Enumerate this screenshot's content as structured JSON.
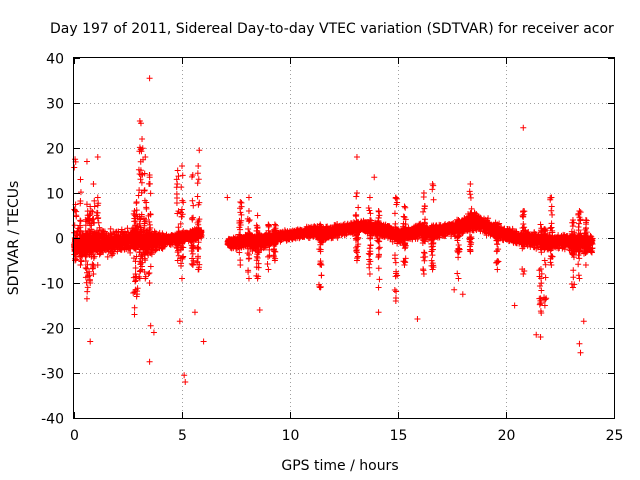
{
  "chart_data": {
    "type": "scatter",
    "title": "Day 197 of 2011, Sidereal Day-to-day VTEC variation (SDTVAR) for receiver acor",
    "xlabel": "GPS time / hours",
    "ylabel": "SDTVAR / TECUs",
    "xlim": [
      0,
      25
    ],
    "ylim": [
      -40,
      40
    ],
    "xticks": [
      0,
      5,
      10,
      15,
      20,
      25
    ],
    "yticks": [
      -40,
      -30,
      -20,
      -10,
      0,
      10,
      20,
      30,
      40
    ],
    "xtick_labels": [
      "0",
      "5",
      "10",
      "15",
      "20",
      "25"
    ],
    "ytick_labels": [
      "-40",
      "-30",
      "-20",
      "-10",
      "0",
      "10",
      "20",
      "30",
      "40"
    ],
    "grid": true,
    "marker": "+",
    "series_color": "#ff0000",
    "series": [
      {
        "name": "SDTVAR",
        "band": [
          {
            "x": 0.0,
            "mid": -1.5,
            "lo": -5.0,
            "hi": 4.0
          },
          {
            "x": 0.5,
            "mid": -1.5,
            "lo": -5.0,
            "hi": 3.0
          },
          {
            "x": 1.0,
            "mid": -1.0,
            "lo": -4.5,
            "hi": 3.0
          },
          {
            "x": 1.5,
            "mid": -1.0,
            "lo": -4.5,
            "hi": 2.5
          },
          {
            "x": 2.0,
            "mid": -1.0,
            "lo": -4.0,
            "hi": 2.5
          },
          {
            "x": 2.5,
            "mid": -0.5,
            "lo": -4.0,
            "hi": 2.5
          },
          {
            "x": 3.0,
            "mid": -0.5,
            "lo": -4.0,
            "hi": 3.0
          },
          {
            "x": 3.5,
            "mid": -1.0,
            "lo": -5.0,
            "hi": 2.5
          },
          {
            "x": 4.0,
            "mid": -0.5,
            "lo": -3.0,
            "hi": 1.5
          },
          {
            "x": 4.5,
            "mid": -0.2,
            "lo": -2.5,
            "hi": 1.0
          },
          {
            "x": 5.0,
            "mid": 0.2,
            "lo": -2.0,
            "hi": 1.5
          },
          {
            "x": 5.5,
            "mid": 0.8,
            "lo": -1.0,
            "hi": 2.5
          },
          {
            "x": 5.9,
            "mid": 1.0,
            "lo": -0.5,
            "hi": 2.5
          },
          {
            "x": 7.1,
            "mid": -1.0,
            "lo": -3.0,
            "hi": 0.5
          },
          {
            "x": 7.5,
            "mid": -1.0,
            "lo": -3.0,
            "hi": 0.5
          },
          {
            "x": 8.0,
            "mid": -0.5,
            "lo": -3.5,
            "hi": 1.0
          },
          {
            "x": 8.5,
            "mid": -0.5,
            "lo": -4.5,
            "hi": 1.0
          },
          {
            "x": 9.0,
            "mid": 0.0,
            "lo": -2.5,
            "hi": 1.5
          },
          {
            "x": 9.5,
            "mid": 0.5,
            "lo": -1.5,
            "hi": 2.0
          },
          {
            "x": 10.0,
            "mid": 0.8,
            "lo": -0.8,
            "hi": 2.0
          },
          {
            "x": 10.5,
            "mid": 1.0,
            "lo": -0.5,
            "hi": 2.2
          },
          {
            "x": 11.0,
            "mid": 1.5,
            "lo": 0.0,
            "hi": 3.0
          },
          {
            "x": 11.5,
            "mid": 1.2,
            "lo": -2.0,
            "hi": 3.0
          },
          {
            "x": 12.0,
            "mid": 1.5,
            "lo": -1.0,
            "hi": 3.5
          },
          {
            "x": 12.5,
            "mid": 2.0,
            "lo": 0.0,
            "hi": 3.5
          },
          {
            "x": 13.0,
            "mid": 2.2,
            "lo": 0.5,
            "hi": 4.0
          },
          {
            "x": 13.5,
            "mid": 2.5,
            "lo": 0.5,
            "hi": 4.2
          },
          {
            "x": 14.0,
            "mid": 2.2,
            "lo": 0.0,
            "hi": 4.0
          },
          {
            "x": 14.5,
            "mid": 1.5,
            "lo": -0.5,
            "hi": 3.5
          },
          {
            "x": 15.0,
            "mid": 0.5,
            "lo": -1.5,
            "hi": 2.5
          },
          {
            "x": 15.5,
            "mid": 1.0,
            "lo": -1.0,
            "hi": 3.0
          },
          {
            "x": 16.0,
            "mid": 1.5,
            "lo": -0.5,
            "hi": 3.5
          },
          {
            "x": 16.5,
            "mid": 1.5,
            "lo": -1.0,
            "hi": 3.5
          },
          {
            "x": 17.0,
            "mid": 1.8,
            "lo": -0.5,
            "hi": 3.5
          },
          {
            "x": 17.5,
            "mid": 2.0,
            "lo": 0.0,
            "hi": 4.0
          },
          {
            "x": 18.0,
            "mid": 2.5,
            "lo": 0.5,
            "hi": 5.0
          },
          {
            "x": 18.5,
            "mid": 3.5,
            "lo": 1.0,
            "hi": 6.5
          },
          {
            "x": 19.0,
            "mid": 3.0,
            "lo": 0.5,
            "hi": 5.0
          },
          {
            "x": 19.5,
            "mid": 1.5,
            "lo": -0.5,
            "hi": 4.0
          },
          {
            "x": 20.0,
            "mid": 0.5,
            "lo": -1.0,
            "hi": 3.0
          },
          {
            "x": 20.5,
            "mid": 0.0,
            "lo": -2.0,
            "hi": 2.0
          },
          {
            "x": 21.0,
            "mid": 0.0,
            "lo": -2.5,
            "hi": 2.0
          },
          {
            "x": 21.5,
            "mid": -0.5,
            "lo": -3.0,
            "hi": 1.5
          },
          {
            "x": 22.0,
            "mid": -1.0,
            "lo": -3.5,
            "hi": 1.0
          },
          {
            "x": 22.5,
            "mid": -0.5,
            "lo": -3.0,
            "hi": 1.0
          },
          {
            "x": 23.0,
            "mid": -0.5,
            "lo": -3.5,
            "hi": 1.0
          },
          {
            "x": 23.5,
            "mid": -1.0,
            "lo": -4.0,
            "hi": 1.5
          },
          {
            "x": 24.0,
            "mid": -1.0,
            "lo": -4.0,
            "hi": 1.0
          }
        ],
        "spikes": [
          {
            "x": 0.05,
            "lo": -5,
            "hi": 17.5
          },
          {
            "x": 0.3,
            "lo": -6,
            "hi": 13
          },
          {
            "x": 0.6,
            "lo": -13.5,
            "hi": 7.5
          },
          {
            "x": 0.75,
            "lo": -10,
            "hi": 7
          },
          {
            "x": 0.9,
            "lo": -8,
            "hi": 12
          },
          {
            "x": 1.1,
            "lo": -6,
            "hi": 9
          },
          {
            "x": 2.8,
            "lo": -17,
            "hi": 6
          },
          {
            "x": 2.9,
            "lo": -13,
            "hi": 8
          },
          {
            "x": 3.05,
            "lo": -9,
            "hi": 26
          },
          {
            "x": 3.15,
            "lo": -7,
            "hi": 22
          },
          {
            "x": 3.3,
            "lo": -9,
            "hi": 18
          },
          {
            "x": 3.5,
            "lo": -10,
            "hi": 14
          },
          {
            "x": 4.8,
            "lo": -5,
            "hi": 15
          },
          {
            "x": 5.0,
            "lo": -9,
            "hi": 16
          },
          {
            "x": 5.5,
            "lo": -6,
            "hi": 14
          },
          {
            "x": 5.75,
            "lo": -7,
            "hi": 16
          },
          {
            "x": 7.7,
            "lo": -6,
            "hi": 8
          },
          {
            "x": 8.1,
            "lo": -9,
            "hi": 6
          },
          {
            "x": 8.5,
            "lo": -9,
            "hi": 5
          },
          {
            "x": 9.0,
            "lo": -7,
            "hi": 3
          },
          {
            "x": 9.3,
            "lo": -5,
            "hi": 3
          },
          {
            "x": 11.4,
            "lo": -11,
            "hi": 3
          },
          {
            "x": 13.1,
            "lo": -5,
            "hi": 10
          },
          {
            "x": 13.7,
            "lo": -8,
            "hi": 9
          },
          {
            "x": 14.1,
            "lo": -11,
            "hi": 6
          },
          {
            "x": 14.9,
            "lo": -14,
            "hi": 9
          },
          {
            "x": 15.3,
            "lo": -6,
            "hi": 7
          },
          {
            "x": 16.2,
            "lo": -8,
            "hi": 10
          },
          {
            "x": 16.6,
            "lo": -7,
            "hi": 12
          },
          {
            "x": 17.8,
            "lo": -9,
            "hi": 4
          },
          {
            "x": 18.35,
            "lo": -3,
            "hi": 12
          },
          {
            "x": 19.6,
            "lo": -7,
            "hi": 3
          },
          {
            "x": 20.8,
            "lo": -8,
            "hi": 6
          },
          {
            "x": 21.6,
            "lo": -22,
            "hi": 3
          },
          {
            "x": 21.8,
            "lo": -15,
            "hi": 2
          },
          {
            "x": 22.1,
            "lo": -6,
            "hi": 9
          },
          {
            "x": 23.1,
            "lo": -11,
            "hi": 4
          },
          {
            "x": 23.4,
            "lo": -9,
            "hi": 6
          },
          {
            "x": 23.7,
            "lo": -6,
            "hi": 4
          }
        ],
        "outliers": [
          {
            "x": 3.5,
            "y": 35.5
          },
          {
            "x": 3.1,
            "y": 25.5
          },
          {
            "x": 5.8,
            "y": 19.5
          },
          {
            "x": 1.1,
            "y": 18
          },
          {
            "x": 0.6,
            "y": 17
          },
          {
            "x": 20.8,
            "y": 24.5
          },
          {
            "x": 13.1,
            "y": 18
          },
          {
            "x": 13.9,
            "y": 13.5
          },
          {
            "x": 8.1,
            "y": 9
          },
          {
            "x": 7.1,
            "y": 9
          },
          {
            "x": 22.1,
            "y": 9
          },
          {
            "x": 0.75,
            "y": -23
          },
          {
            "x": 3.5,
            "y": -27.5
          },
          {
            "x": 3.7,
            "y": -21
          },
          {
            "x": 3.55,
            "y": -19.5
          },
          {
            "x": 5.1,
            "y": -30.5
          },
          {
            "x": 5.15,
            "y": -32
          },
          {
            "x": 4.9,
            "y": -18.5
          },
          {
            "x": 6.0,
            "y": -23
          },
          {
            "x": 5.6,
            "y": -16.5
          },
          {
            "x": 8.6,
            "y": -16
          },
          {
            "x": 14.1,
            "y": -16.5
          },
          {
            "x": 15.9,
            "y": -18
          },
          {
            "x": 18.0,
            "y": -12.5
          },
          {
            "x": 20.4,
            "y": -15
          },
          {
            "x": 21.4,
            "y": -21.5
          },
          {
            "x": 23.4,
            "y": -23.5
          },
          {
            "x": 23.45,
            "y": -25.5
          },
          {
            "x": 23.6,
            "y": -18.5
          },
          {
            "x": 17.6,
            "y": -11.5
          }
        ]
      }
    ]
  }
}
